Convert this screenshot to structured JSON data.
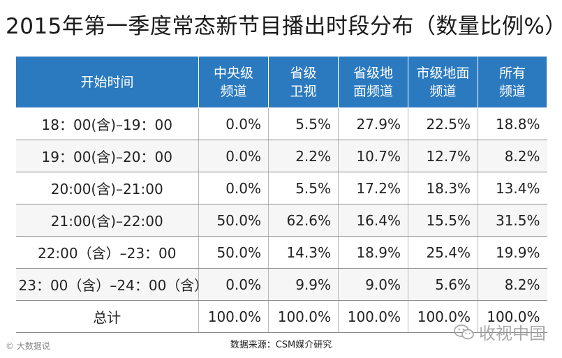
{
  "chart_data": {
    "type": "table",
    "title": "2015年第一季度常态新节目播出时段分布（数量比例%）",
    "columns": [
      "开始时间",
      "中央级频道",
      "省级卫视",
      "省级地面频道",
      "市级地面频道",
      "所有频道"
    ],
    "header_lines": [
      [
        "开始时间"
      ],
      [
        "中央级",
        "频道"
      ],
      [
        "省级",
        "卫视"
      ],
      [
        "省级地",
        "面频道"
      ],
      [
        "市级地面",
        "频道"
      ],
      [
        "所有",
        "频道"
      ]
    ],
    "rows": [
      [
        "18：00(含)–19：00",
        "0.0%",
        "5.5%",
        "27.9%",
        "22.5%",
        "18.8%"
      ],
      [
        "19：00(含)–20：00",
        "0.0%",
        "2.2%",
        "10.7%",
        "12.7%",
        "8.2%"
      ],
      [
        "20:00(含)–21:00",
        "0.0%",
        "5.5%",
        "17.2%",
        "18.3%",
        "13.4%"
      ],
      [
        "21:00(含)–22:00",
        "50.0%",
        "62.6%",
        "16.4%",
        "15.5%",
        "31.5%"
      ],
      [
        "22:00（含）–23：00",
        "50.0%",
        "14.3%",
        "18.9%",
        "25.4%",
        "19.9%"
      ],
      [
        "23：00（含）–24：00（含）",
        "0.0%",
        "9.9%",
        "9.0%",
        "5.6%",
        "8.2%"
      ],
      [
        "总计",
        "100.0%",
        "100.0%",
        "100.0%",
        "100.0%",
        "100.0%"
      ]
    ],
    "values": [
      [
        0.0,
        5.5,
        27.9,
        22.5,
        18.8
      ],
      [
        0.0,
        2.2,
        10.7,
        12.7,
        8.2
      ],
      [
        0.0,
        5.5,
        17.2,
        18.3,
        13.4
      ],
      [
        50.0,
        62.6,
        16.4,
        15.5,
        31.5
      ],
      [
        50.0,
        14.3,
        18.9,
        25.4,
        19.9
      ],
      [
        0.0,
        9.9,
        9.0,
        5.6,
        8.2
      ],
      [
        100.0,
        100.0,
        100.0,
        100.0,
        100.0
      ]
    ],
    "source": "数据来源：CSM媒介研究",
    "header_color": "#2b7ac0"
  },
  "watermarks": {
    "left": "大数据说",
    "right": "收视中国",
    "left_icon": "circle-c-icon",
    "right_icon": "wechat-icon"
  }
}
